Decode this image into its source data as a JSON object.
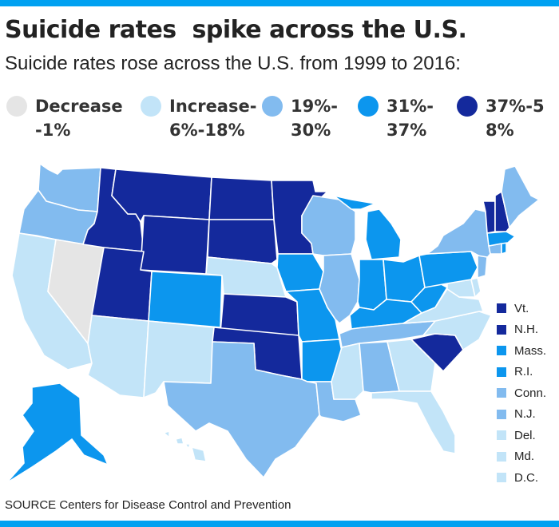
{
  "header": {
    "title": "Suicide rates  spike across the U.S.",
    "subtitle": "Suicide rates rose across the U.S. from 1999 to 2016:"
  },
  "colors": {
    "bar": "#00a1f1",
    "decrease": "#e5e5e5",
    "increase_low": "#c2e4f8",
    "increase_mid": "#82bbef",
    "increase_high": "#0c96ee",
    "increase_top": "#14299c"
  },
  "legend": [
    {
      "label": "Decrease-1%",
      "color": "#e5e5e5"
    },
    {
      "label": "Increase-6%-18%",
      "color": "#c2e4f8"
    },
    {
      "label": "19%-30%",
      "color": "#82bbef"
    },
    {
      "label": "31%-37%",
      "color": "#0c96ee"
    },
    {
      "label": "37%-58%",
      "color": "#14299c"
    }
  ],
  "small_states": [
    {
      "label": "Vt.",
      "color": "#14299c"
    },
    {
      "label": "N.H.",
      "color": "#14299c"
    },
    {
      "label": "Mass.",
      "color": "#0c96ee"
    },
    {
      "label": "R.I.",
      "color": "#0c96ee"
    },
    {
      "label": "Conn.",
      "color": "#82bbef"
    },
    {
      "label": "N.J.",
      "color": "#82bbef"
    },
    {
      "label": "Del.",
      "color": "#c2e4f8"
    },
    {
      "label": "Md.",
      "color": "#c2e4f8"
    },
    {
      "label": "D.C.",
      "color": "#c2e4f8"
    }
  ],
  "footer": {
    "source": "SOURCE Centers for Disease Control and Prevention"
  }
}
